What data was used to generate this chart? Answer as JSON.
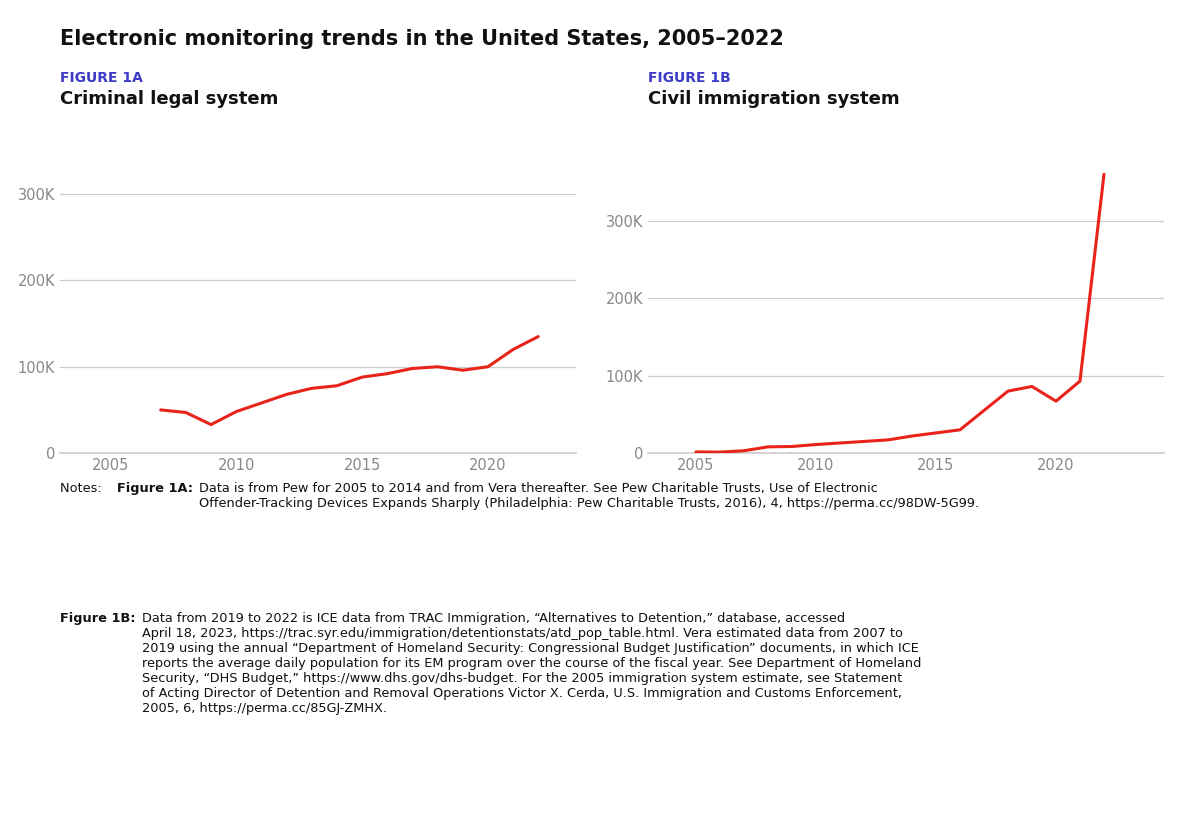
{
  "title": "Electronic monitoring trends in the United States, 2005–2022",
  "fig1a_label": "FIGURE 1A",
  "fig1a_title": "Criminal legal system",
  "fig1b_label": "FIGURE 1B",
  "fig1b_title": "Civil immigration system",
  "line_color": "#e8231a",
  "line_width": 2.2,
  "fig1a_x": [
    2007,
    2008,
    2009,
    2010,
    2011,
    2012,
    2013,
    2014,
    2015,
    2016,
    2017,
    2018,
    2019,
    2020,
    2021,
    2022
  ],
  "fig1a_y": [
    50000,
    47000,
    33000,
    48000,
    58000,
    68000,
    75000,
    78000,
    88000,
    92000,
    98000,
    100000,
    96000,
    100000,
    120000,
    135000
  ],
  "fig1b_x": [
    2005,
    2006,
    2007,
    2008,
    2009,
    2010,
    2011,
    2012,
    2013,
    2014,
    2015,
    2016,
    2017,
    2018,
    2019,
    2020,
    2021,
    2022
  ],
  "fig1b_y": [
    1500,
    1200,
    3000,
    8000,
    8500,
    11000,
    13000,
    15000,
    17000,
    22000,
    26000,
    30000,
    55000,
    80000,
    86000,
    67000,
    93000,
    360000
  ],
  "ylim_a": [
    0,
    350000
  ],
  "ylim_b": [
    0,
    390000
  ],
  "yticks": [
    0,
    100000,
    200000,
    300000
  ],
  "ytick_labels": [
    "0",
    "100K",
    "200K",
    "300K"
  ],
  "xticks": [
    2005,
    2010,
    2015,
    2020
  ],
  "xlim_a": [
    2003,
    2023.5
  ],
  "xlim_b": [
    2003,
    2024.5
  ],
  "label_color": "#3b3bc8",
  "title_color": "#111111",
  "axis_color": "#cccccc",
  "tick_color": "#888888",
  "background_color": "#ffffff",
  "note1_prefix": "Notes: ",
  "note1_bold": "Figure 1A:",
  "note1_rest": " Data is from Pew for 2005 to 2014 and from Vera thereafter. See Pew Charitable Trusts, Use of Electronic Offender-Tracking Devices Expands Sharply (Philadelphia: Pew Charitable Trusts, 2016), 4, https://perma.cc/98DW-5G99.",
  "note2_bold": "Figure 1B:",
  "note2_rest": " Data from 2019 to 2022 is ICE data from TRAC Immigration, “Alternatives to Detention,” database, accessed April 18, 2023, https://trac.syr.edu/immigration/detentionstats/atd_pop_table.html. Vera estimated data from 2007 to 2019 using the annual “Department of Homeland Security: Congressional Budget Justification” documents, in which ICE reports the average daily population for its EM program over the course of the fiscal year. See Department of Homeland Security, “DHS Budget,” https://www.dhs.gov/dhs-budget. For the 2005 immigration system estimate, see Statement of Acting Director of Detention and Removal Operations Victor X. Cerda, U.S. Immigration and Customs Enforcement, 2005, 6, https://perma.cc/85GJ-ZMHX."
}
